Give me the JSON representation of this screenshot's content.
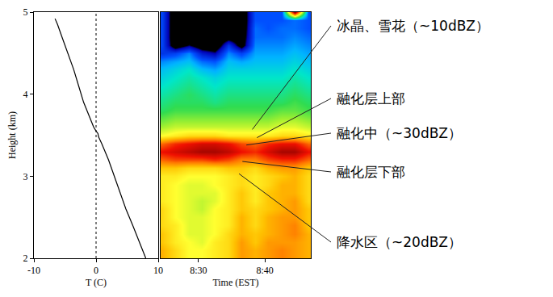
{
  "chart_data": [
    {
      "type": "line",
      "xlabel": "T (C)",
      "ylabel": "Height (km)",
      "x": [
        -6.6,
        -6.2,
        -5.5,
        -4.5,
        -3.6,
        -2.8,
        -2.0,
        -1.2,
        -0.4,
        0.0,
        0.3,
        0.4,
        0.9,
        2.0,
        2.9,
        3.9,
        4.8,
        5.9,
        7.0,
        8.0
      ],
      "values": [
        4.92,
        4.85,
        4.7,
        4.5,
        4.3,
        4.1,
        3.9,
        3.75,
        3.6,
        3.55,
        3.52,
        3.48,
        3.4,
        3.2,
        3.0,
        2.8,
        2.6,
        2.4,
        2.2,
        2.0
      ],
      "color": "#000000",
      "line_style": "solid",
      "xlim": [
        -10,
        10
      ],
      "xticks": [
        -10,
        0,
        10
      ],
      "ylim": [
        2,
        5
      ],
      "yticks": [
        2,
        3,
        4,
        5
      ],
      "vlines": [
        {
          "x": 0,
          "line_style": "dotted"
        }
      ]
    },
    {
      "type": "heatmap",
      "xlabel": "Time (EST)",
      "x": [
        24.5,
        26.5,
        28.5,
        30.5,
        32.5,
        34.5,
        36.5,
        38.5,
        40.5,
        42.5,
        44.5,
        46.5
      ],
      "y": [
        2.0,
        2.1,
        2.2,
        2.3,
        2.4,
        2.5,
        2.6,
        2.7,
        2.8,
        2.9,
        3.0,
        3.1,
        3.2,
        3.3,
        3.4,
        3.5,
        3.6,
        3.7,
        3.8,
        3.9,
        4.0,
        4.1,
        4.2,
        4.3,
        4.4,
        4.5,
        4.6,
        4.7,
        4.8,
        4.9,
        5.0
      ],
      "z": [
        [
          24,
          22,
          20,
          20,
          21,
          22,
          25,
          24,
          25,
          26,
          25,
          24
        ],
        [
          24,
          22,
          20,
          20,
          21,
          22,
          25,
          24,
          25,
          26,
          25,
          24
        ],
        [
          23,
          21,
          20,
          19,
          21,
          22,
          25,
          23,
          25,
          25,
          25,
          24
        ],
        [
          23,
          21,
          19,
          19,
          20,
          22,
          24,
          23,
          24,
          25,
          26,
          24
        ],
        [
          22,
          21,
          19,
          19,
          20,
          21,
          24,
          22,
          24,
          25,
          26,
          23
        ],
        [
          22,
          20,
          19,
          19,
          20,
          21,
          24,
          22,
          24,
          25,
          25,
          23
        ],
        [
          22,
          20,
          19,
          18,
          20,
          21,
          23,
          22,
          23,
          24,
          25,
          23
        ],
        [
          21,
          20,
          19,
          18,
          19,
          21,
          23,
          21,
          23,
          24,
          25,
          22
        ],
        [
          21,
          20,
          19,
          19,
          19,
          21,
          23,
          21,
          23,
          24,
          24,
          22
        ],
        [
          21,
          20,
          19,
          19,
          20,
          21,
          22,
          21,
          22,
          24,
          24,
          22
        ],
        [
          21,
          21,
          20,
          20,
          20,
          21,
          22,
          21,
          22,
          23,
          24,
          22
        ],
        [
          23,
          23,
          22,
          22,
          22,
          23,
          23,
          22,
          24,
          25,
          25,
          23
        ],
        [
          27,
          28,
          28,
          28,
          29,
          28,
          26,
          26,
          28,
          29,
          29,
          27
        ],
        [
          30,
          31,
          32,
          33,
          33,
          32,
          30,
          29,
          31,
          33,
          33,
          30
        ],
        [
          27,
          29,
          30,
          31,
          31,
          30,
          28,
          27,
          29,
          30,
          30,
          27
        ],
        [
          20,
          21,
          22,
          22,
          22,
          21,
          21,
          21,
          21,
          22,
          22,
          21
        ],
        [
          17,
          18,
          18,
          18,
          18,
          18,
          18,
          18,
          18,
          19,
          19,
          18
        ],
        [
          15,
          16,
          16,
          16,
          16,
          16,
          16,
          16,
          16,
          17,
          17,
          16
        ],
        [
          13,
          14,
          14,
          14,
          14,
          14,
          14,
          14,
          14,
          15,
          15,
          14
        ],
        [
          12,
          13,
          13,
          13,
          12,
          13,
          13,
          13,
          13,
          13,
          14,
          13
        ],
        [
          11,
          12,
          13,
          12,
          11,
          12,
          12,
          12,
          12,
          12,
          13,
          12
        ],
        [
          10,
          11,
          12,
          11,
          10,
          11,
          11,
          11,
          11,
          11,
          12,
          11
        ],
        [
          9,
          10,
          11,
          10,
          9,
          10,
          10,
          10,
          10,
          10,
          11,
          10
        ],
        [
          8,
          9,
          10,
          8,
          7,
          9,
          9,
          9,
          9,
          9,
          10,
          9
        ],
        [
          6,
          7,
          8,
          5,
          4,
          8,
          7,
          8,
          8,
          8,
          9,
          8
        ],
        [
          2,
          3,
          6,
          0,
          -2,
          6,
          3,
          7,
          7,
          7,
          8,
          7
        ],
        [
          3,
          -7,
          -3,
          -7,
          -8,
          2,
          -6,
          6,
          6,
          6,
          7,
          6
        ],
        [
          3,
          -8,
          -8,
          -8,
          -8,
          -6,
          -7,
          5,
          5,
          5,
          6,
          5
        ],
        [
          3,
          -8,
          -8,
          -8,
          -8,
          -7,
          -8,
          5,
          4,
          5,
          5,
          4
        ],
        [
          3,
          -8,
          -8,
          -8,
          -8,
          -8,
          -8,
          4,
          4,
          4,
          5,
          4
        ],
        [
          3,
          -8,
          -8,
          -8,
          -8,
          -8,
          -8,
          4,
          4,
          4,
          35,
          4
        ]
      ],
      "zlim": [
        -8,
        35
      ],
      "xlim": [
        24.3,
        46.9
      ],
      "xticks": [
        {
          "value": 30,
          "label": "8:30"
        },
        {
          "value": 40,
          "label": "8:40"
        }
      ],
      "ylim": [
        2,
        5
      ],
      "tick_labels": "x",
      "annotations": [
        {
          "text": "冰晶、雪花（~10dBZ）",
          "x": 38.1,
          "y": 3.57
        },
        {
          "text": "融化层上部",
          "x": 38.8,
          "y": 3.47
        },
        {
          "text": "融化中（~30dBZ）",
          "x": 37.2,
          "y": 3.38
        },
        {
          "text": "融化层下部",
          "x": 36.6,
          "y": 3.18
        },
        {
          "text": "降水区（~20dBZ）",
          "x": 36.1,
          "y": 3.03
        }
      ]
    }
  ]
}
